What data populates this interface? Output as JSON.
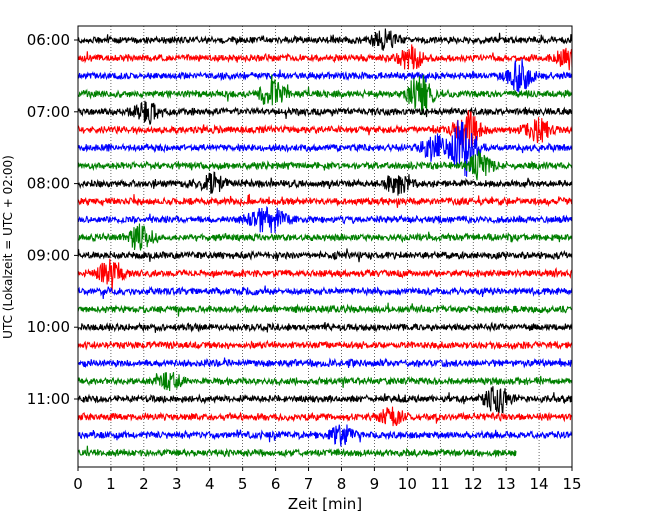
{
  "chart_data": {
    "type": "line",
    "title": "",
    "xlabel": "Zeit  [min]",
    "ylabel": "UTC (Lokalzeit = UTC + 02:00)",
    "xlim": [
      0,
      15
    ],
    "x_ticks": [
      "0",
      "1",
      "2",
      "3",
      "4",
      "5",
      "6",
      "7",
      "8",
      "9",
      "10",
      "11",
      "12",
      "13",
      "14",
      "15"
    ],
    "y_ticks": [
      "06:00",
      "07:00",
      "08:00",
      "09:00",
      "10:00",
      "11:00"
    ],
    "grid": "vertical dotted",
    "trace_interval_minutes": 15,
    "start_time": "06:00",
    "color_cycle": [
      "#000000",
      "#ff0000",
      "#0000ff",
      "#008000"
    ],
    "series": [
      {
        "start": "06:00",
        "color": "#000000",
        "end_minute": 15,
        "events": [
          {
            "minute": 9.3,
            "amplitude": 1.6
          }
        ]
      },
      {
        "start": "06:15",
        "color": "#ff0000",
        "end_minute": 15,
        "events": [
          {
            "minute": 10.1,
            "amplitude": 1.8
          },
          {
            "minute": 14.9,
            "amplitude": 1.6
          }
        ]
      },
      {
        "start": "06:30",
        "color": "#0000ff",
        "end_minute": 15,
        "events": [
          {
            "minute": 13.4,
            "amplitude": 2.6
          }
        ]
      },
      {
        "start": "06:45",
        "color": "#008000",
        "end_minute": 15,
        "events": [
          {
            "minute": 5.9,
            "amplitude": 2.2
          },
          {
            "minute": 10.4,
            "amplitude": 3.2
          }
        ]
      },
      {
        "start": "07:00",
        "color": "#000000",
        "end_minute": 15,
        "events": [
          {
            "minute": 2.1,
            "amplitude": 1.6
          }
        ]
      },
      {
        "start": "07:15",
        "color": "#ff0000",
        "end_minute": 15,
        "events": [
          {
            "minute": 11.8,
            "amplitude": 3.0
          },
          {
            "minute": 14.0,
            "amplitude": 2.0
          }
        ]
      },
      {
        "start": "07:30",
        "color": "#0000ff",
        "end_minute": 15,
        "events": [
          {
            "minute": 11.7,
            "amplitude": 5.0
          },
          {
            "minute": 10.8,
            "amplitude": 2.0
          }
        ]
      },
      {
        "start": "07:45",
        "color": "#008000",
        "end_minute": 15,
        "events": [
          {
            "minute": 12.2,
            "amplitude": 2.2
          }
        ]
      },
      {
        "start": "08:00",
        "color": "#000000",
        "end_minute": 15,
        "events": [
          {
            "minute": 9.7,
            "amplitude": 1.5
          },
          {
            "minute": 4.1,
            "amplitude": 1.4
          }
        ]
      },
      {
        "start": "08:15",
        "color": "#ff0000",
        "end_minute": 15,
        "events": []
      },
      {
        "start": "08:30",
        "color": "#0000ff",
        "end_minute": 15,
        "events": [
          {
            "minute": 5.5,
            "amplitude": 1.6
          },
          {
            "minute": 6.0,
            "amplitude": 1.4
          }
        ]
      },
      {
        "start": "08:45",
        "color": "#008000",
        "end_minute": 15,
        "events": [
          {
            "minute": 1.9,
            "amplitude": 2.0
          }
        ]
      },
      {
        "start": "09:00",
        "color": "#000000",
        "end_minute": 15,
        "events": []
      },
      {
        "start": "09:15",
        "color": "#ff0000",
        "end_minute": 15,
        "events": [
          {
            "minute": 1.0,
            "amplitude": 2.0
          }
        ]
      },
      {
        "start": "09:30",
        "color": "#0000ff",
        "end_minute": 15,
        "events": []
      },
      {
        "start": "09:45",
        "color": "#008000",
        "end_minute": 15,
        "events": []
      },
      {
        "start": "10:00",
        "color": "#000000",
        "end_minute": 15,
        "events": []
      },
      {
        "start": "10:15",
        "color": "#ff0000",
        "end_minute": 15,
        "events": []
      },
      {
        "start": "10:30",
        "color": "#0000ff",
        "end_minute": 15,
        "events": []
      },
      {
        "start": "10:45",
        "color": "#008000",
        "end_minute": 15,
        "events": [
          {
            "minute": 2.8,
            "amplitude": 1.3
          }
        ]
      },
      {
        "start": "11:00",
        "color": "#000000",
        "end_minute": 15,
        "events": [
          {
            "minute": 12.75,
            "amplitude": 2.2
          }
        ]
      },
      {
        "start": "11:15",
        "color": "#ff0000",
        "end_minute": 15,
        "events": [
          {
            "minute": 9.5,
            "amplitude": 1.3
          }
        ]
      },
      {
        "start": "11:30",
        "color": "#0000ff",
        "end_minute": 15,
        "events": [
          {
            "minute": 8.0,
            "amplitude": 1.4
          }
        ]
      },
      {
        "start": "11:45",
        "color": "#008000",
        "end_minute": 13.3,
        "events": []
      }
    ]
  }
}
